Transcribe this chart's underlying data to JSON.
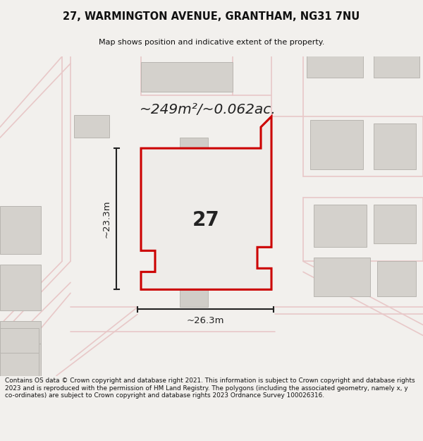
{
  "title": "27, WARMINGTON AVENUE, GRANTHAM, NG31 7NU",
  "subtitle": "Map shows position and indicative extent of the property.",
  "area_text": "~249m²/~0.062ac.",
  "label_27": "27",
  "dim_horiz": "~26.3m",
  "dim_vert": "~23.3m",
  "footer_lines": [
    "Contains OS data © Crown copyright and database right 2021. This information is subject to Crown copyright and database rights 2023 and is reproduced with the permission of",
    "HM Land Registry. The polygons (including the associated geometry, namely x, y co-ordinates) are subject to Crown copyright and database rights 2023 Ordnance Survey",
    "100026316."
  ],
  "bg_color": "#f2f0ed",
  "map_bg": "#f2f0ed",
  "plot_stroke": "#cc0000",
  "building_color": "#d4d1cc",
  "road_color": "#e8c8c8",
  "footer_bg": "#ffffff",
  "title_color": "#111111"
}
